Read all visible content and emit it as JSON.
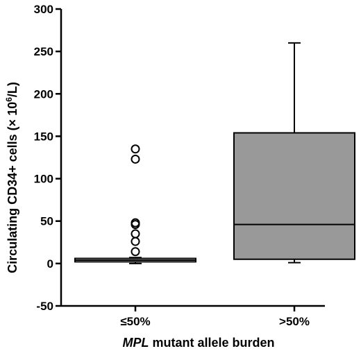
{
  "chart_data": {
    "type": "box",
    "ylabel_text": "Circulating CD34+ cells (× 10",
    "ylabel_sup": "6",
    "ylabel_end": "/L)",
    "xlabel_italic": "MPL",
    "xlabel_rest": " mutant allele burden",
    "ylim": [
      -50,
      300
    ],
    "yticks": [
      -50,
      0,
      50,
      100,
      150,
      200,
      250,
      300
    ],
    "categories": [
      "≤50%",
      ">50%"
    ],
    "grid": false,
    "legend": "none",
    "boxes": [
      {
        "category": "≤50%",
        "min": 0,
        "q1": 2,
        "median": 4,
        "q3": 6,
        "max": 7,
        "fill": "#ffffff",
        "outliers": [
          135,
          123,
          48,
          46,
          35,
          26,
          14
        ]
      },
      {
        "category": ">50%",
        "min": 1,
        "q1": 5,
        "median": 46,
        "q3": 154,
        "max": 260,
        "fill": "#999999",
        "outliers": []
      }
    ]
  }
}
